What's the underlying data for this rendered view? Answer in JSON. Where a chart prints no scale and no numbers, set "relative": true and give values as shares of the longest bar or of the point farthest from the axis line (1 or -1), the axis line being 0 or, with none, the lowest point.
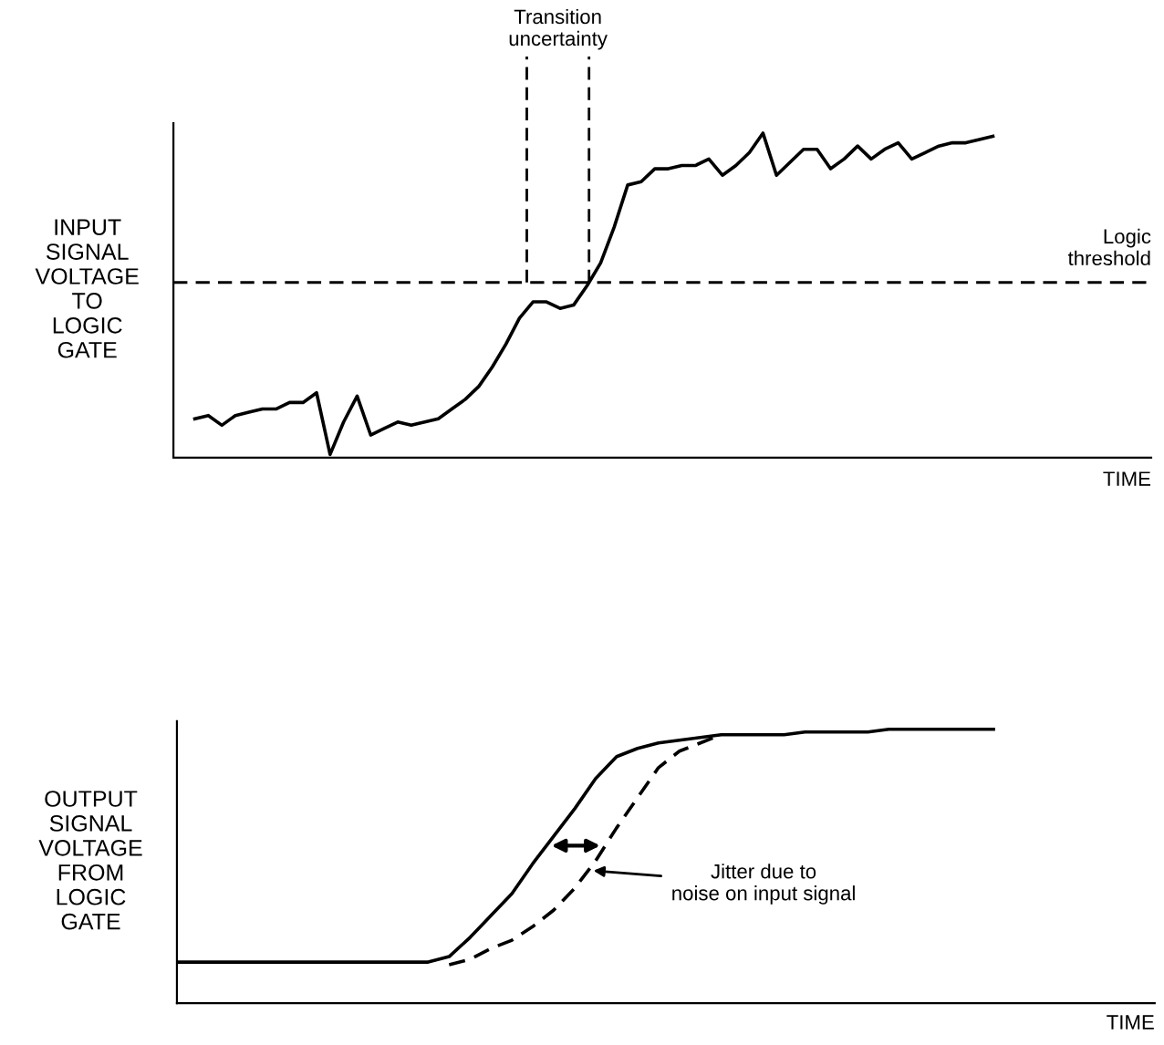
{
  "chart_data": [
    {
      "type": "line",
      "relative": true,
      "ylabel": "INPUT\nSIGNAL\nVOLTAGE\nTO\nLOGIC\nGATE",
      "xlabel": "TIME",
      "legend": false,
      "marker": "none",
      "categories": [
        null,
        null,
        null,
        null,
        null,
        null,
        null,
        null,
        null,
        null,
        null,
        null,
        null,
        null,
        null,
        null,
        null,
        null,
        null,
        null,
        null,
        null,
        null,
        null,
        null,
        null,
        null,
        null,
        null,
        null,
        null,
        null,
        null,
        null,
        null,
        null,
        null,
        null,
        null,
        null,
        null,
        null,
        null,
        null,
        null,
        null,
        null,
        null,
        null,
        null,
        null,
        null,
        null,
        null,
        null,
        null,
        null,
        null,
        null,
        null
      ],
      "series": [
        {
          "color": "#000000",
          "line_style": "solid",
          "values": [
            0.12,
            0.13,
            0.1,
            0.13,
            0.14,
            0.15,
            0.15,
            0.17,
            0.17,
            0.2,
            0.01,
            0.11,
            0.19,
            0.07,
            0.09,
            0.11,
            0.1,
            0.11,
            0.12,
            0.15,
            0.18,
            0.22,
            0.28,
            0.35,
            0.43,
            0.48,
            0.48,
            0.46,
            0.47,
            0.53,
            0.6,
            0.71,
            0.84,
            0.85,
            0.89,
            0.89,
            0.9,
            0.9,
            0.92,
            0.87,
            0.9,
            0.94,
            1.0,
            0.87,
            0.91,
            0.95,
            0.95,
            0.89,
            0.92,
            0.96,
            0.92,
            0.95,
            0.97,
            0.92,
            0.94,
            0.96,
            0.97,
            0.97,
            0.98,
            0.99
          ]
        }
      ],
      "ref_lines": [
        {
          "axis": "y",
          "value": 0.54,
          "label": "Logic\nthreshold",
          "line_style": "dashed",
          "color": "#000000"
        }
      ],
      "annotations": [
        "Transition\nuncertainty"
      ]
    },
    {
      "type": "line",
      "relative": true,
      "ylabel": "OUTPUT\nSIGNAL\nVOLTAGE\nFROM\nLOGIC\nGATE",
      "xlabel": "TIME",
      "legend": false,
      "marker": "none",
      "categories": [
        null,
        null,
        null,
        null,
        null,
        null,
        null,
        null,
        null,
        null,
        null,
        null,
        null,
        null,
        null,
        null,
        null,
        null,
        null,
        null,
        null,
        null,
        null,
        null,
        null,
        null,
        null,
        null,
        null,
        null,
        null,
        null,
        null,
        null,
        null,
        null,
        null,
        null,
        null,
        null
      ],
      "series": [
        {
          "color": "#000000",
          "line_style": "solid",
          "values": [
            0.15,
            0.15,
            0.15,
            0.15,
            0.15,
            0.15,
            0.15,
            0.15,
            0.15,
            0.15,
            0.15,
            0.15,
            0.15,
            0.17,
            0.24,
            0.32,
            0.4,
            0.51,
            0.61,
            0.71,
            0.82,
            0.9,
            0.93,
            0.95,
            0.96,
            0.97,
            0.98,
            0.98,
            0.98,
            0.98,
            0.99,
            0.99,
            0.99,
            0.99,
            1.0,
            1.0,
            1.0,
            1.0,
            1.0,
            1.0
          ]
        },
        {
          "color": "#000000",
          "line_style": "dashed",
          "values": [
            null,
            null,
            null,
            null,
            null,
            null,
            null,
            null,
            null,
            null,
            null,
            null,
            null,
            0.14,
            0.16,
            0.2,
            0.23,
            0.28,
            0.34,
            0.42,
            0.52,
            0.64,
            0.75,
            0.86,
            0.92,
            0.95,
            0.98,
            null,
            null,
            null,
            null,
            null,
            null,
            null,
            null,
            null,
            null,
            null,
            null,
            null
          ]
        }
      ],
      "annotations": [
        "Jitter due to\nnoise on input signal"
      ]
    }
  ]
}
